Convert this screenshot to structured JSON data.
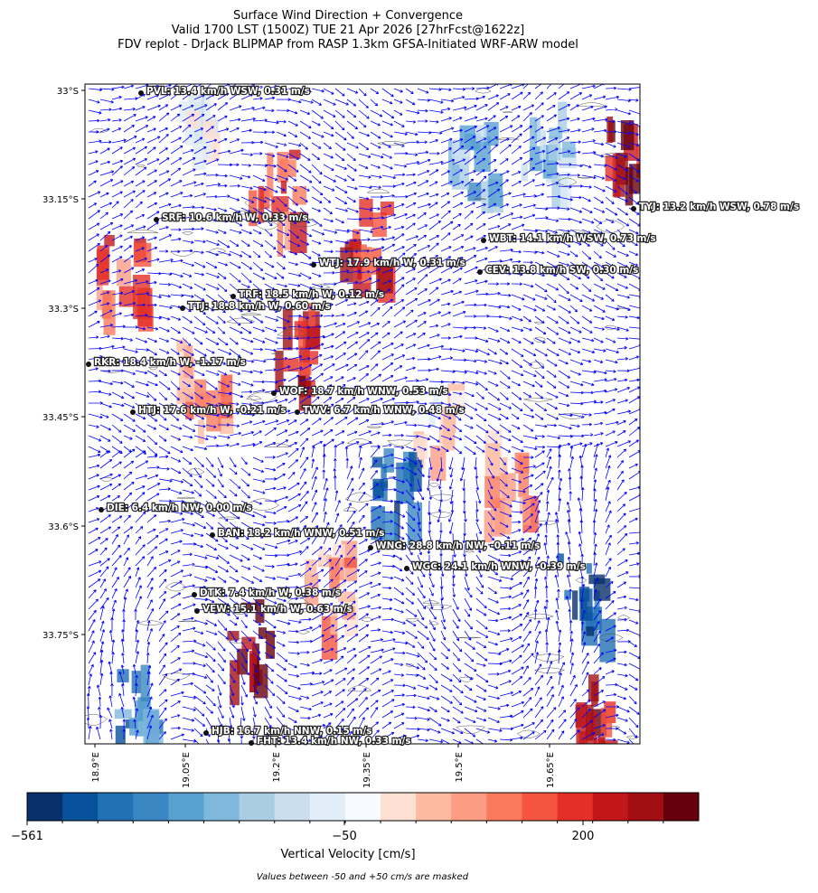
{
  "header": {
    "title_lines": [
      "Surface Wind Direction + Convergence",
      "Valid 1700 LST (1500Z) TUE 21 Apr 2026 [27hrFcst@1622z]",
      "FDV replot - DrJack BLIPMAP from RASP 1.3km GFSA-Initiated WRF-ARW model"
    ]
  },
  "map": {
    "lat_ticks": [
      "33°S",
      "33.15°S",
      "33.3°S",
      "33.45°S",
      "33.6°S",
      "33.75°S"
    ],
    "lon_ticks": [
      "18.9°E",
      "19.05°E",
      "19.2°E",
      "19.35°E",
      "19.5°E",
      "19.65°E"
    ],
    "stations": [
      {
        "label": "PVL: 13.4 km/h WSW, 0.31 m/s"
      },
      {
        "label": "TYJ: 13.2 km/h WSW, 0.78 m/s"
      },
      {
        "label": "SRF: 10.6 km/h W, 0.33 m/s"
      },
      {
        "label": "WBT: 14.1 km/h WSW, 0.73 m/s"
      },
      {
        "label": "WTJ: 17.9 km/h W, 0.31 m/s"
      },
      {
        "label": "CEV: 13.8 km/h SW, 0.30 m/s"
      },
      {
        "label": "TRF: 18.5 km/h W, 0.12 m/s"
      },
      {
        "label": "TTJ: 18.8 km/h W, 0.60 m/s"
      },
      {
        "label": "RKR: 18.4 km/h W, -1.17 m/s"
      },
      {
        "label": "WOF: 18.7 km/h WNW, 0.53 m/s"
      },
      {
        "label": "HTJ: 17.6 km/h W, -0.21 m/s"
      },
      {
        "label": "TWV: 6.7 km/h WNW, 0.48 m/s"
      },
      {
        "label": "DIE: 6.4 km/h NW, 0.00 m/s"
      },
      {
        "label": "BAN: 18.2 km/h WNW, 0.51 m/s"
      },
      {
        "label": "WNG: 28.8 km/h NW, -0.11 m/s"
      },
      {
        "label": "WGC: 24.1 km/h WNW, -0.39 m/s"
      },
      {
        "label": "DTK: 7.4 km/h W, 0.38 m/s"
      },
      {
        "label": "VEW: 15.1 km/h W, 0.63 m/s"
      },
      {
        "label": "HJB: 16.7 km/h NNW, 0.15 m/s"
      },
      {
        "label": "FHT: 13.4 km/h NW, 0.33 m/s"
      }
    ]
  },
  "colorbar": {
    "ticks": [
      "−561",
      "−50",
      "200"
    ],
    "label": "Vertical Velocity [cm/s]",
    "colors": [
      "#08306b",
      "#08519c",
      "#2171b5",
      "#3a87c3",
      "#57a0cf",
      "#80b8dc",
      "#a9cee4",
      "#cadef0",
      "#e1edf8",
      "#f7fbff",
      "#fee0d2",
      "#fcbba1",
      "#fc9c83",
      "#fb7a5e",
      "#f5543e",
      "#e32f27",
      "#c3161b",
      "#a10f15",
      "#67000d"
    ]
  },
  "note": "Values between -50 and +50 cm/s are masked"
}
